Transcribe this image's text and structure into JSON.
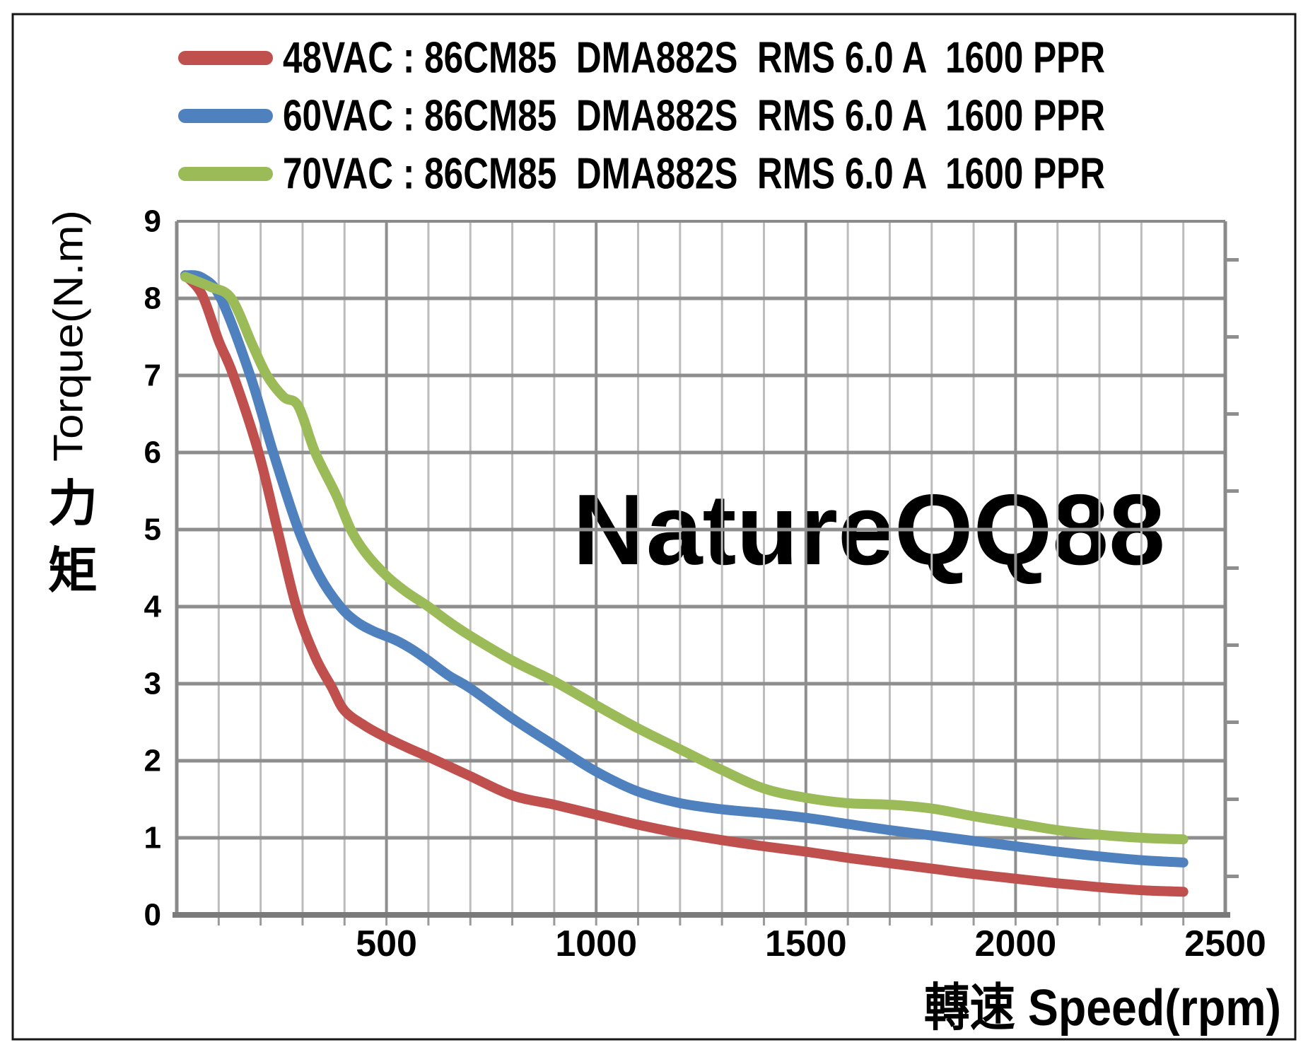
{
  "figure": {
    "background": "#ffffff",
    "border_color": "#161616",
    "frame_color": "#8a8a8a",
    "minor_grid_color": "#bcbcbc",
    "major_grid_color": "#8e8e8e",
    "axis_color": "#7a7a7a"
  },
  "legend": {
    "items": [
      {
        "label": "48VAC : 86CM85  DMA882S  RMS 6.0 A  1600 PPR",
        "color": "#C0504D"
      },
      {
        "label": "60VAC : 86CM85  DMA882S  RMS 6.0 A  1600 PPR",
        "color": "#4E81BD"
      },
      {
        "label": "70VAC : 86CM85  DMA882S  RMS 6.0 A  1600 PPR",
        "color": "#9BBB59"
      }
    ]
  },
  "watermark": {
    "text": "NatureQQ88",
    "color": "#A6F4F4"
  },
  "axes": {
    "y_title": "Torque(N.m)",
    "y_title_cjk": [
      "力",
      "矩"
    ],
    "x_title": "轉速 Speed(rpm)",
    "y_ticks": [
      "0",
      "1",
      "2",
      "3",
      "4",
      "5",
      "6",
      "7",
      "8",
      "9"
    ],
    "x_ticks": [
      "500",
      "1000",
      "1500",
      "2000",
      "2500"
    ]
  },
  "chart_data": {
    "type": "line",
    "title": "",
    "xlabel": "轉速 Speed(rpm)",
    "ylabel": "Torque(N.m)",
    "xlim": [
      0,
      2500
    ],
    "ylim": [
      0,
      9
    ],
    "x_major_step": 500,
    "x_minor_step": 100,
    "y_major_step": 1,
    "grid": "on",
    "legend_position": "top",
    "series": [
      {
        "name": "48VAC : 86CM85  DMA882S  RMS 6.0 A  1600 PPR",
        "color": "#C0504D",
        "points": [
          [
            20,
            8.3
          ],
          [
            60,
            8.05
          ],
          [
            100,
            7.45
          ],
          [
            135,
            7.0
          ],
          [
            195,
            6.0
          ],
          [
            240,
            5.0
          ],
          [
            285,
            4.0
          ],
          [
            330,
            3.35
          ],
          [
            370,
            2.95
          ],
          [
            400,
            2.65
          ],
          [
            450,
            2.45
          ],
          [
            500,
            2.3
          ],
          [
            550,
            2.17
          ],
          [
            600,
            2.05
          ],
          [
            700,
            1.8
          ],
          [
            800,
            1.55
          ],
          [
            900,
            1.43
          ],
          [
            1000,
            1.3
          ],
          [
            1100,
            1.17
          ],
          [
            1200,
            1.06
          ],
          [
            1300,
            0.97
          ],
          [
            1400,
            0.89
          ],
          [
            1500,
            0.82
          ],
          [
            1600,
            0.74
          ],
          [
            1700,
            0.67
          ],
          [
            1800,
            0.6
          ],
          [
            1900,
            0.53
          ],
          [
            2000,
            0.47
          ],
          [
            2100,
            0.41
          ],
          [
            2200,
            0.36
          ],
          [
            2300,
            0.32
          ],
          [
            2400,
            0.3
          ]
        ]
      },
      {
        "name": "60VAC : 86CM85  DMA882S  RMS 6.0 A  1600 PPR",
        "color": "#4E81BD",
        "points": [
          [
            20,
            8.3
          ],
          [
            60,
            8.27
          ],
          [
            105,
            8.0
          ],
          [
            175,
            7.0
          ],
          [
            230,
            6.0
          ],
          [
            290,
            5.0
          ],
          [
            340,
            4.4
          ],
          [
            390,
            4.0
          ],
          [
            430,
            3.8
          ],
          [
            470,
            3.68
          ],
          [
            520,
            3.57
          ],
          [
            560,
            3.45
          ],
          [
            600,
            3.3
          ],
          [
            650,
            3.1
          ],
          [
            700,
            2.94
          ],
          [
            800,
            2.55
          ],
          [
            900,
            2.2
          ],
          [
            1000,
            1.86
          ],
          [
            1100,
            1.6
          ],
          [
            1200,
            1.45
          ],
          [
            1300,
            1.37
          ],
          [
            1400,
            1.32
          ],
          [
            1500,
            1.26
          ],
          [
            1600,
            1.18
          ],
          [
            1700,
            1.1
          ],
          [
            1800,
            1.03
          ],
          [
            1900,
            0.96
          ],
          [
            2000,
            0.89
          ],
          [
            2100,
            0.82
          ],
          [
            2200,
            0.76
          ],
          [
            2300,
            0.71
          ],
          [
            2400,
            0.68
          ]
        ]
      },
      {
        "name": "70VAC : 86CM85  DMA882S  RMS 6.0 A  1600 PPR",
        "color": "#9BBB59",
        "points": [
          [
            20,
            8.28
          ],
          [
            80,
            8.15
          ],
          [
            130,
            8.0
          ],
          [
            180,
            7.4
          ],
          [
            215,
            7.0
          ],
          [
            255,
            6.72
          ],
          [
            290,
            6.6
          ],
          [
            330,
            6.0
          ],
          [
            380,
            5.45
          ],
          [
            415,
            5.0
          ],
          [
            450,
            4.7
          ],
          [
            500,
            4.4
          ],
          [
            545,
            4.2
          ],
          [
            600,
            4.0
          ],
          [
            650,
            3.8
          ],
          [
            700,
            3.62
          ],
          [
            800,
            3.3
          ],
          [
            900,
            3.03
          ],
          [
            1000,
            2.72
          ],
          [
            1100,
            2.42
          ],
          [
            1200,
            2.15
          ],
          [
            1300,
            1.88
          ],
          [
            1400,
            1.64
          ],
          [
            1500,
            1.52
          ],
          [
            1600,
            1.45
          ],
          [
            1700,
            1.43
          ],
          [
            1800,
            1.38
          ],
          [
            1900,
            1.28
          ],
          [
            2000,
            1.19
          ],
          [
            2100,
            1.1
          ],
          [
            2200,
            1.04
          ],
          [
            2300,
            1.0
          ],
          [
            2400,
            0.98
          ]
        ]
      }
    ]
  }
}
